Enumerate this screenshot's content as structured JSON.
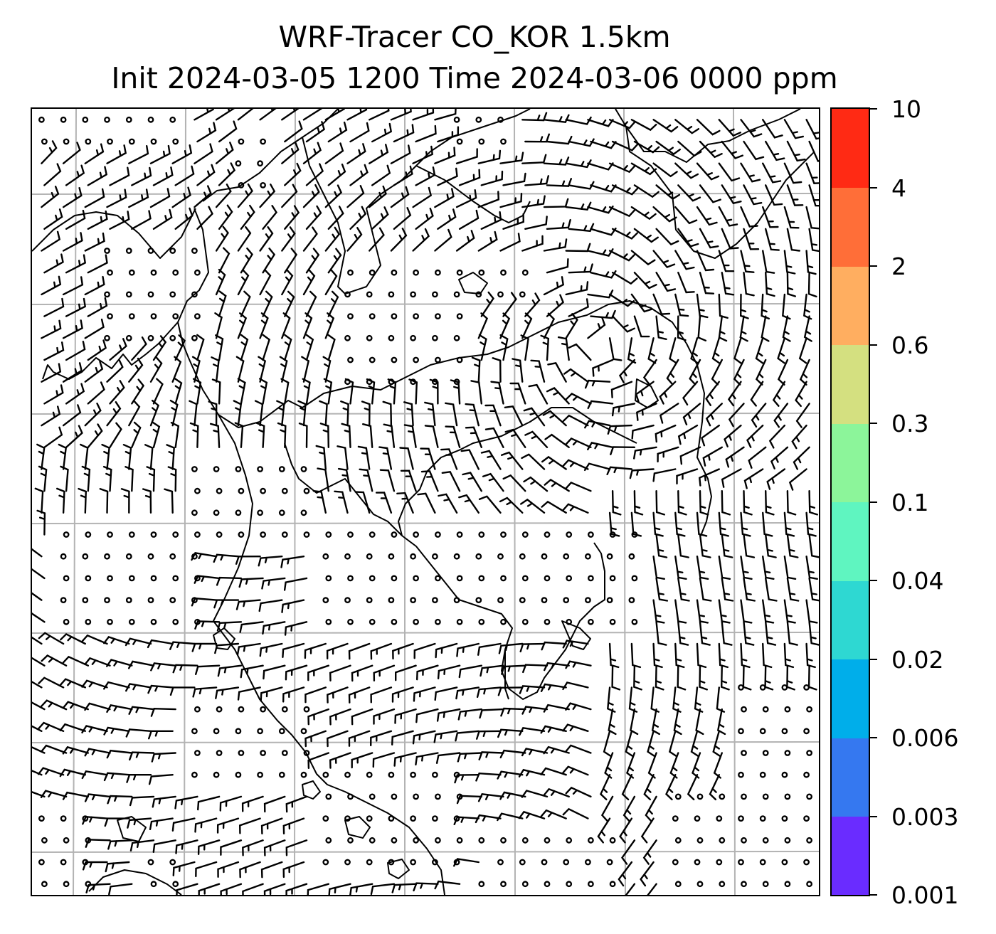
{
  "title": {
    "line1": "WRF-Tracer CO_KOR 1.5km",
    "line2": "Init 2024-03-05 1200 Time 2024-03-06 0000 ppm"
  },
  "colorbar": {
    "levels": [
      "0.001",
      "0.003",
      "0.006",
      "0.02",
      "0.04",
      "0.1",
      "0.3",
      "0.6",
      "2",
      "4",
      "10"
    ],
    "colors": [
      "#6a2cff",
      "#3578f0",
      "#00aeea",
      "#2ed8d2",
      "#5ff5c0",
      "#8cf59a",
      "#d4e080",
      "#ffae60",
      "#ff6e38",
      "#ff2a14"
    ]
  },
  "map": {
    "tracer_field": "empty",
    "barb_color": "#000000",
    "coastline_color": "#000000",
    "gridline_color": "#b0b0b0"
  }
}
